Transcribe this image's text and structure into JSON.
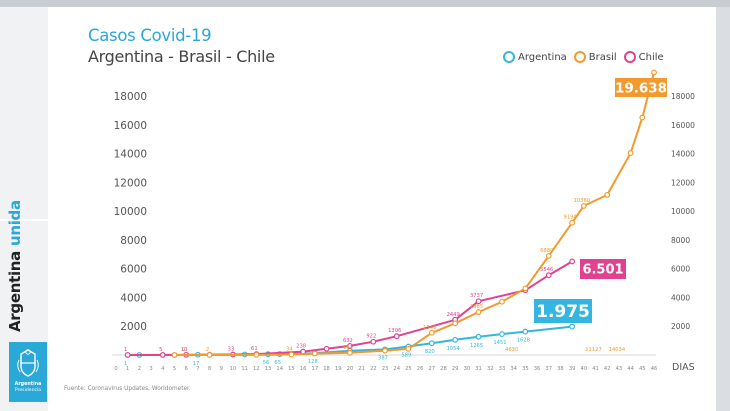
{
  "source_note": "Fuente: Coronavirus Updates, Worldometer.",
  "sidebar": {
    "brand_word1": "Argentina",
    "brand_word2": "unida",
    "logo_line1": "Argentina",
    "logo_line2": "Presidencia",
    "logo_icon": "coat-of-arms-icon"
  },
  "colors": {
    "argentina": "#35b6e0",
    "brasil": "#f29a2e",
    "chile": "#e0428f",
    "axis_text": "#555555",
    "tick_text": "#888888"
  },
  "chart_data": {
    "type": "line",
    "title": "Casos Covid-19",
    "subtitle": "Argentina - Brasil - Chile",
    "xlabel": "DIAS",
    "ylabel": "",
    "xlim": [
      0,
      46
    ],
    "ylim": [
      0,
      18000
    ],
    "y_ticks": [
      2000,
      4000,
      6000,
      8000,
      10000,
      12000,
      14000,
      16000,
      18000
    ],
    "y_ticks_left": [
      "2000",
      "4000",
      "6000",
      "8000",
      "10000",
      "12000",
      "14000",
      "16000",
      "18000"
    ],
    "y_ticks_right": [
      "2000",
      "4000",
      "6000",
      "8000",
      "10000",
      "12000",
      "14000",
      "16000",
      "18000"
    ],
    "x_ticks": [
      0,
      1,
      2,
      3,
      4,
      5,
      6,
      7,
      8,
      9,
      10,
      11,
      12,
      13,
      14,
      15,
      16,
      17,
      18,
      19,
      20,
      21,
      22,
      23,
      24,
      25,
      26,
      27,
      28,
      29,
      30,
      31,
      32,
      33,
      34,
      35,
      36,
      37,
      38,
      39,
      40,
      41,
      42,
      43,
      44,
      45,
      46
    ],
    "grid": false,
    "legend_position": "top-right",
    "series": [
      {
        "name": "Argentina",
        "key": "argentina",
        "points": [
          [
            1,
            1
          ],
          [
            2,
            1
          ],
          [
            5,
            2
          ],
          [
            7,
            17
          ],
          [
            11,
            34
          ],
          [
            13,
            56
          ],
          [
            14,
            65
          ],
          [
            17,
            128
          ],
          [
            20,
            301
          ],
          [
            23,
            387
          ],
          [
            25,
            589
          ],
          [
            27,
            820
          ],
          [
            29,
            1054
          ],
          [
            31,
            1265
          ],
          [
            33,
            1451
          ],
          [
            35,
            1628
          ],
          [
            39,
            1975
          ]
        ],
        "point_labels": [
          [
            1,
            "1"
          ],
          [
            7,
            "17"
          ],
          [
            13,
            "56"
          ],
          [
            14,
            "65"
          ],
          [
            17,
            "128"
          ],
          [
            23,
            "387"
          ],
          [
            25,
            "589"
          ],
          [
            27,
            "820"
          ],
          [
            29,
            "1054"
          ],
          [
            31,
            "1265"
          ],
          [
            33,
            "1451"
          ],
          [
            35,
            "1628"
          ]
        ],
        "callout": "1.975"
      },
      {
        "name": "Brasil",
        "key": "brasil",
        "points": [
          [
            5,
            2
          ],
          [
            8,
            2
          ],
          [
            12,
            8
          ],
          [
            15,
            34
          ],
          [
            17,
            100
          ],
          [
            20,
            151
          ],
          [
            23,
            300
          ],
          [
            25,
            428
          ],
          [
            27,
            1546
          ],
          [
            29,
            2200
          ],
          [
            31,
            2985
          ],
          [
            33,
            3700
          ],
          [
            35,
            4630
          ],
          [
            37,
            6880
          ],
          [
            39,
            9194
          ],
          [
            40,
            10360
          ],
          [
            42,
            11127
          ],
          [
            44,
            14034
          ],
          [
            45,
            16500
          ],
          [
            46,
            19638
          ]
        ],
        "point_labels": [
          [
            6,
            "2"
          ],
          [
            8,
            "2"
          ],
          [
            15,
            "34"
          ],
          [
            20,
            "151"
          ],
          [
            27,
            "1546"
          ],
          [
            31,
            "2985"
          ],
          [
            34,
            "4630"
          ],
          [
            37,
            "6880"
          ],
          [
            39,
            "9194"
          ],
          [
            40,
            "10360"
          ],
          [
            41,
            "11127"
          ],
          [
            43,
            "14034"
          ]
        ],
        "callout": "19.638"
      },
      {
        "name": "Chile",
        "key": "chile",
        "points": [
          [
            1,
            1
          ],
          [
            4,
            5
          ],
          [
            6,
            10
          ],
          [
            8,
            17
          ],
          [
            10,
            33
          ],
          [
            12,
            61
          ],
          [
            16,
            238
          ],
          [
            18,
            434
          ],
          [
            20,
            632
          ],
          [
            22,
            922
          ],
          [
            24,
            1306
          ],
          [
            29,
            2449
          ],
          [
            31,
            3737
          ],
          [
            35,
            4500
          ],
          [
            37,
            5546
          ],
          [
            39,
            6501
          ]
        ],
        "point_labels": [
          [
            1,
            "1"
          ],
          [
            4,
            "5"
          ],
          [
            6,
            "10"
          ],
          [
            10,
            "33"
          ],
          [
            12,
            "61"
          ],
          [
            16,
            "238"
          ],
          [
            20,
            "632"
          ],
          [
            22,
            "922"
          ],
          [
            24,
            "1306"
          ],
          [
            29,
            "2449"
          ],
          [
            31,
            "3737"
          ],
          [
            37,
            "5546"
          ]
        ],
        "callout": "6.501"
      }
    ]
  }
}
